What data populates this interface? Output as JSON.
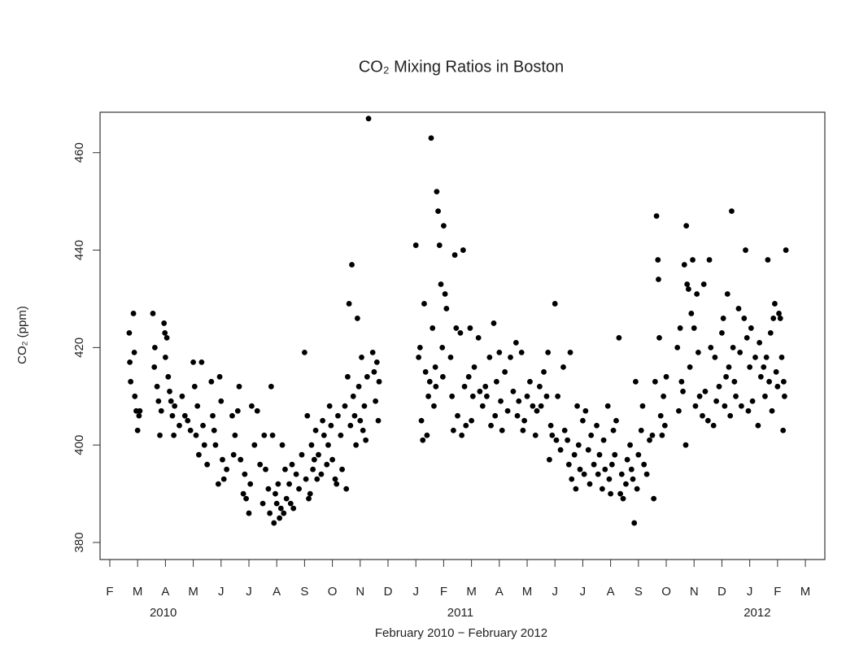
{
  "chart_data": {
    "type": "scatter",
    "title": "CO₂ Mixing Ratios in Boston",
    "ylabel": "CO₂ (ppm)",
    "xlabel": "February 2010 − February 2012",
    "color": "#000000",
    "xlim": [
      -0.35,
      25.7
    ],
    "ylim": [
      376.5,
      468.3
    ],
    "yticks": [
      380,
      400,
      420,
      440,
      460
    ],
    "xticks": [
      {
        "value": 0,
        "label": "F"
      },
      {
        "value": 1,
        "label": "M"
      },
      {
        "value": 2,
        "label": "A"
      },
      {
        "value": 3,
        "label": "M"
      },
      {
        "value": 4,
        "label": "J"
      },
      {
        "value": 5,
        "label": "J"
      },
      {
        "value": 6,
        "label": "A"
      },
      {
        "value": 7,
        "label": "S"
      },
      {
        "value": 8,
        "label": "O"
      },
      {
        "value": 9,
        "label": "N"
      },
      {
        "value": 10,
        "label": "D"
      },
      {
        "value": 11,
        "label": "J"
      },
      {
        "value": 12,
        "label": "F"
      },
      {
        "value": 13,
        "label": "M"
      },
      {
        "value": 14,
        "label": "A"
      },
      {
        "value": 15,
        "label": "M"
      },
      {
        "value": 16,
        "label": "J"
      },
      {
        "value": 17,
        "label": "J"
      },
      {
        "value": 18,
        "label": "A"
      },
      {
        "value": 19,
        "label": "S"
      },
      {
        "value": 20,
        "label": "O"
      },
      {
        "value": 21,
        "label": "N"
      },
      {
        "value": 22,
        "label": "D"
      },
      {
        "value": 23,
        "label": "J"
      },
      {
        "value": 24,
        "label": "F"
      },
      {
        "value": 25,
        "label": "M"
      }
    ],
    "year_labels": [
      {
        "value": 1.92,
        "label": "2010"
      },
      {
        "value": 12.6,
        "label": "2011"
      },
      {
        "value": 23.27,
        "label": "2012"
      }
    ],
    "x": [
      0.7,
      0.72,
      0.75,
      0.85,
      0.88,
      0.9,
      0.95,
      1.0,
      1.05,
      1.08,
      1.55,
      1.6,
      1.62,
      1.7,
      1.75,
      1.8,
      1.85,
      1.95,
      1.98,
      2.0,
      2.05,
      2.1,
      2.15,
      2.2,
      2.25,
      2.3,
      2.33,
      2.5,
      2.6,
      2.7,
      2.8,
      2.9,
      3.0,
      3.05,
      3.1,
      3.15,
      3.2,
      3.3,
      3.35,
      3.4,
      3.5,
      3.65,
      3.7,
      3.75,
      3.8,
      3.9,
      3.95,
      4.0,
      4.05,
      4.1,
      4.2,
      4.4,
      4.45,
      4.5,
      4.6,
      4.65,
      4.7,
      4.8,
      4.85,
      4.9,
      5.0,
      5.05,
      5.1,
      5.2,
      5.3,
      5.4,
      5.5,
      5.55,
      5.6,
      5.7,
      5.75,
      5.8,
      5.85,
      5.9,
      5.95,
      6.0,
      6.05,
      6.1,
      6.15,
      6.2,
      6.25,
      6.3,
      6.35,
      6.45,
      6.5,
      6.55,
      6.6,
      6.7,
      6.8,
      6.9,
      7.0,
      7.05,
      7.1,
      7.15,
      7.2,
      7.25,
      7.3,
      7.35,
      7.4,
      7.45,
      7.5,
      7.6,
      7.65,
      7.7,
      7.8,
      7.85,
      7.9,
      7.95,
      8.0,
      8.1,
      8.15,
      8.2,
      8.3,
      8.35,
      8.45,
      8.5,
      8.55,
      8.6,
      8.65,
      8.7,
      8.75,
      8.8,
      8.85,
      8.9,
      8.95,
      9.0,
      9.05,
      9.1,
      9.15,
      9.2,
      9.25,
      9.3,
      9.45,
      9.5,
      9.55,
      9.6,
      9.65,
      9.68,
      11.0,
      11.1,
      11.15,
      11.2,
      11.25,
      11.3,
      11.35,
      11.4,
      11.45,
      11.5,
      11.55,
      11.6,
      11.65,
      11.7,
      11.75,
      11.8,
      11.85,
      11.9,
      11.95,
      12.0,
      12.05,
      12.1,
      11.72,
      11.97,
      12.25,
      12.3,
      12.35,
      12.4,
      12.45,
      12.5,
      12.6,
      12.65,
      12.7,
      12.75,
      12.8,
      12.9,
      12.95,
      13.0,
      13.05,
      13.1,
      13.25,
      13.3,
      13.4,
      13.5,
      13.55,
      13.65,
      13.7,
      13.8,
      13.85,
      13.9,
      14.0,
      14.05,
      14.1,
      14.2,
      14.3,
      14.4,
      14.5,
      14.6,
      14.65,
      14.7,
      14.8,
      14.85,
      14.9,
      15.0,
      15.1,
      15.2,
      15.3,
      15.35,
      15.45,
      15.5,
      15.6,
      15.7,
      15.75,
      15.8,
      15.85,
      15.9,
      16.0,
      16.05,
      16.1,
      16.2,
      16.3,
      16.35,
      16.45,
      16.5,
      16.55,
      16.6,
      16.7,
      16.75,
      16.8,
      16.85,
      16.9,
      17.0,
      17.05,
      17.1,
      17.2,
      17.25,
      17.3,
      17.4,
      17.5,
      17.55,
      17.6,
      17.7,
      17.75,
      17.8,
      17.9,
      17.95,
      18.0,
      18.05,
      18.1,
      18.15,
      18.2,
      18.3,
      18.35,
      18.4,
      18.45,
      18.55,
      18.6,
      18.7,
      18.75,
      18.8,
      18.85,
      18.9,
      18.95,
      19.0,
      19.1,
      19.15,
      19.2,
      19.3,
      19.4,
      19.5,
      19.55,
      19.6,
      19.65,
      19.7,
      19.72,
      19.75,
      19.8,
      19.85,
      19.9,
      19.95,
      20.0,
      20.4,
      20.45,
      20.5,
      20.55,
      20.6,
      20.65,
      20.7,
      20.72,
      20.75,
      20.8,
      20.85,
      20.9,
      20.95,
      21.0,
      21.05,
      21.1,
      21.15,
      21.2,
      21.3,
      21.35,
      21.4,
      21.5,
      21.55,
      21.6,
      21.7,
      21.75,
      21.8,
      21.9,
      22.0,
      22.05,
      22.1,
      22.15,
      22.2,
      22.25,
      22.3,
      22.35,
      22.4,
      22.45,
      22.5,
      22.6,
      22.65,
      22.7,
      22.8,
      22.85,
      22.9,
      22.95,
      23.0,
      23.05,
      23.1,
      23.2,
      23.3,
      23.35,
      23.4,
      23.5,
      23.55,
      23.6,
      23.65,
      23.7,
      23.75,
      23.8,
      23.85,
      23.9,
      23.95,
      24.0,
      24.05,
      24.1,
      24.15,
      24.2,
      24.25,
      24.3,
      24.22
    ],
    "values": [
      423,
      417,
      413,
      427,
      419,
      410,
      407,
      403,
      406,
      407,
      427,
      416,
      420,
      412,
      409,
      402,
      407,
      425,
      423,
      418,
      422,
      414,
      411,
      409,
      406,
      402,
      408,
      404,
      410,
      406,
      405,
      403,
      417,
      412,
      402,
      408,
      398,
      417,
      404,
      400,
      396,
      413,
      406,
      403,
      400,
      392,
      414,
      409,
      397,
      393,
      395,
      406,
      398,
      402,
      407,
      412,
      397,
      390,
      394,
      389,
      386,
      392,
      408,
      400,
      407,
      396,
      388,
      402,
      395,
      391,
      386,
      412,
      402,
      384,
      390,
      388,
      392,
      385,
      387,
      400,
      386,
      395,
      389,
      392,
      388,
      396,
      387,
      394,
      391,
      398,
      419,
      393,
      406,
      389,
      390,
      400,
      395,
      397,
      403,
      393,
      398,
      394,
      405,
      402,
      396,
      400,
      408,
      404,
      397,
      393,
      392,
      406,
      402,
      395,
      408,
      391,
      414,
      429,
      404,
      437,
      410,
      406,
      400,
      426,
      412,
      405,
      418,
      403,
      408,
      401,
      414,
      467,
      419,
      415,
      409,
      417,
      405,
      413,
      441,
      418,
      420,
      405,
      401,
      429,
      415,
      402,
      410,
      413,
      463,
      424,
      408,
      416,
      452,
      448,
      441,
      433,
      420,
      445,
      431,
      428,
      412,
      414,
      418,
      410,
      403,
      439,
      424,
      406,
      423,
      402,
      440,
      412,
      404,
      414,
      424,
      405,
      410,
      416,
      422,
      411,
      408,
      412,
      410,
      418,
      404,
      425,
      406,
      413,
      419,
      409,
      403,
      415,
      407,
      418,
      411,
      421,
      406,
      409,
      419,
      403,
      405,
      410,
      413,
      408,
      402,
      407,
      412,
      408,
      415,
      410,
      419,
      397,
      404,
      402,
      429,
      401,
      410,
      399,
      416,
      403,
      401,
      396,
      419,
      393,
      398,
      391,
      408,
      400,
      395,
      405,
      394,
      407,
      399,
      392,
      402,
      396,
      404,
      394,
      398,
      391,
      401,
      395,
      408,
      393,
      390,
      396,
      403,
      398,
      405,
      422,
      390,
      394,
      389,
      392,
      397,
      400,
      395,
      393,
      384,
      413,
      391,
      398,
      403,
      408,
      396,
      394,
      401,
      402,
      389,
      413,
      447,
      438,
      434,
      422,
      406,
      402,
      410,
      404,
      414,
      420,
      407,
      424,
      413,
      411,
      437,
      400,
      445,
      433,
      432,
      416,
      427,
      438,
      424,
      408,
      431,
      419,
      410,
      406,
      433,
      411,
      405,
      438,
      420,
      404,
      418,
      409,
      412,
      423,
      426,
      408,
      414,
      431,
      416,
      406,
      448,
      420,
      413,
      410,
      428,
      419,
      408,
      426,
      440,
      422,
      407,
      416,
      424,
      409,
      418,
      404,
      421,
      414,
      416,
      410,
      418,
      438,
      413,
      423,
      407,
      426,
      429,
      415,
      412,
      427,
      426,
      418,
      403,
      410,
      440,
      413
    ]
  }
}
